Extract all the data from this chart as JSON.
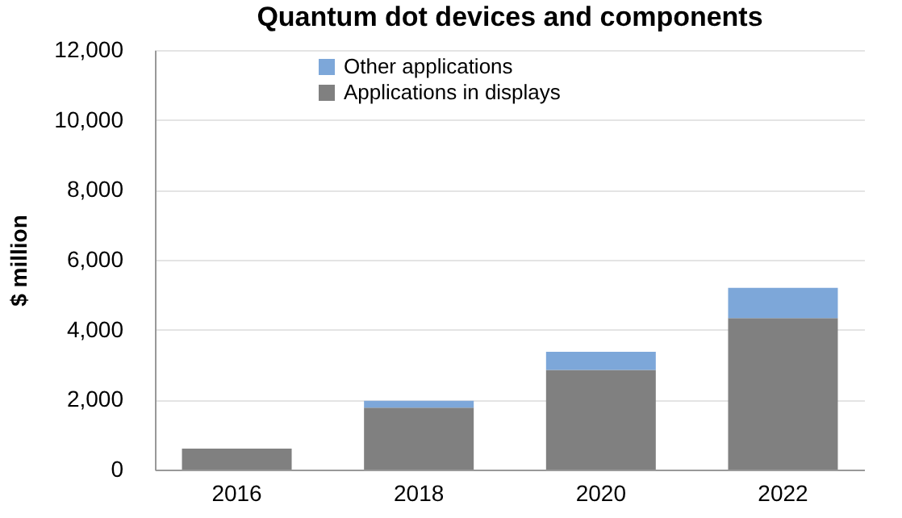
{
  "chart_data": {
    "type": "bar",
    "title": "Quantum dot devices and components",
    "ylabel": "$ million",
    "categories": [
      "2016",
      "2018",
      "2020",
      "2022"
    ],
    "stacked": true,
    "series": [
      {
        "name": "Applications in displays",
        "color": "#808080",
        "values": [
          600,
          1770,
          2850,
          4330
        ]
      },
      {
        "name": "Other applications",
        "color": "#7da7d9",
        "values": [
          0,
          200,
          520,
          870
        ]
      }
    ],
    "ylim": [
      0,
      12000
    ],
    "yticks": [
      0,
      {
        "value": 2000,
        "label": "2,000"
      },
      {
        "value": 4000,
        "label": "4,000"
      },
      {
        "value": 6000,
        "label": "6,000"
      },
      {
        "value": 8000,
        "label": "8,000"
      },
      {
        "value": 10000,
        "label": "10,000"
      },
      {
        "value": 12000,
        "label": "12,000"
      }
    ],
    "grid": "y",
    "legend": "top left"
  }
}
